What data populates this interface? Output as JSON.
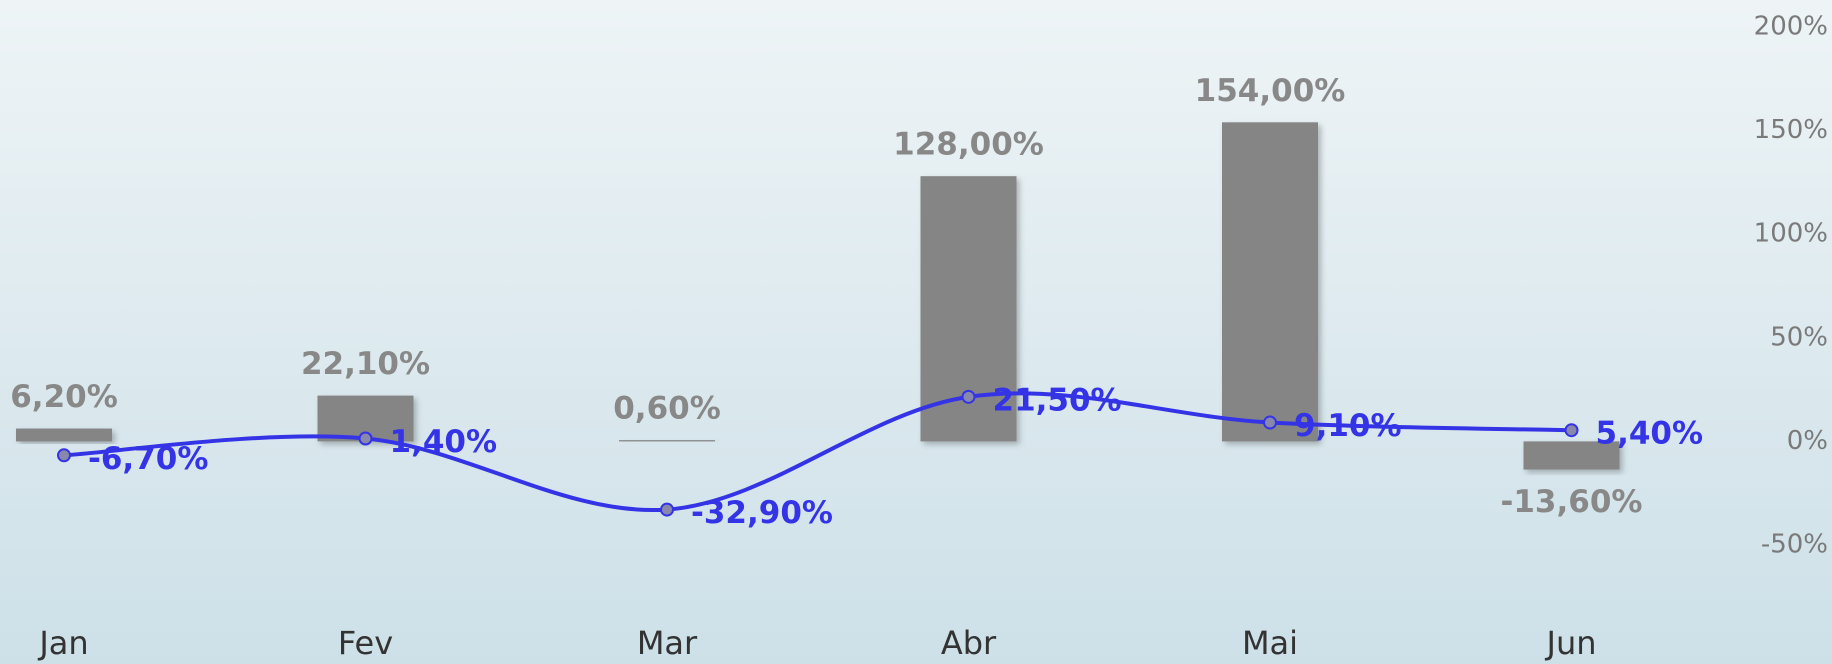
{
  "chart_data": {
    "type": "combo",
    "categories": [
      "Jan",
      "Fev",
      "Mar",
      "Abr",
      "Mai",
      "Jun"
    ],
    "series": [
      {
        "type": "bar",
        "color": "#858585",
        "values": [
          6.2,
          22.1,
          0.6,
          128,
          154,
          -13.6
        ],
        "value_labels": [
          "6,20%",
          "22,10%",
          "0,60%",
          "128,00%",
          "154,00%",
          "-13,60%"
        ]
      },
      {
        "type": "line",
        "color": "#3434e6",
        "values": [
          -6.7,
          1.4,
          -32.9,
          21.5,
          9.1,
          5.4
        ],
        "value_labels": [
          "-6,70%",
          "1,40%",
          "-32,90%",
          "21,50%",
          "9,10%",
          "5,40%"
        ]
      }
    ],
    "ylim": [
      -50,
      200
    ],
    "yticks": [
      {
        "value": -50,
        "label": "-50%"
      },
      {
        "value": 0,
        "label": "0%"
      },
      {
        "value": 50,
        "label": "50%"
      },
      {
        "value": 100,
        "label": "100%"
      },
      {
        "value": 150,
        "label": "150%"
      },
      {
        "value": 200,
        "label": "200%"
      }
    ]
  }
}
